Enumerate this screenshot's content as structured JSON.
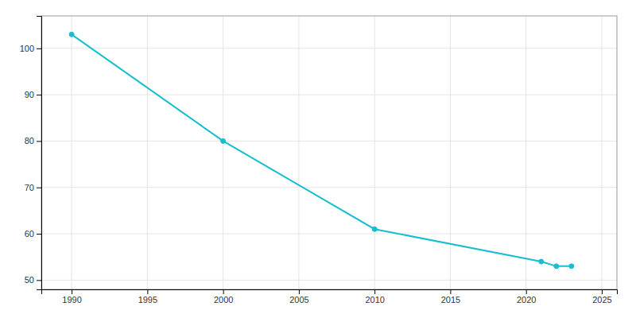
{
  "chart_data": {
    "type": "line",
    "x": [
      1990,
      2000,
      2010,
      2021,
      2022,
      2023
    ],
    "values": [
      103,
      80,
      61,
      54,
      53,
      53
    ],
    "color": "#17becf",
    "marker": "circle",
    "xlim": [
      1988,
      2026
    ],
    "ylim": [
      48,
      107
    ],
    "xticks": [
      1990,
      1995,
      2000,
      2005,
      2010,
      2015,
      2020,
      2025
    ],
    "yticks": [
      50,
      60,
      70,
      80,
      90,
      100
    ],
    "grid": true
  }
}
